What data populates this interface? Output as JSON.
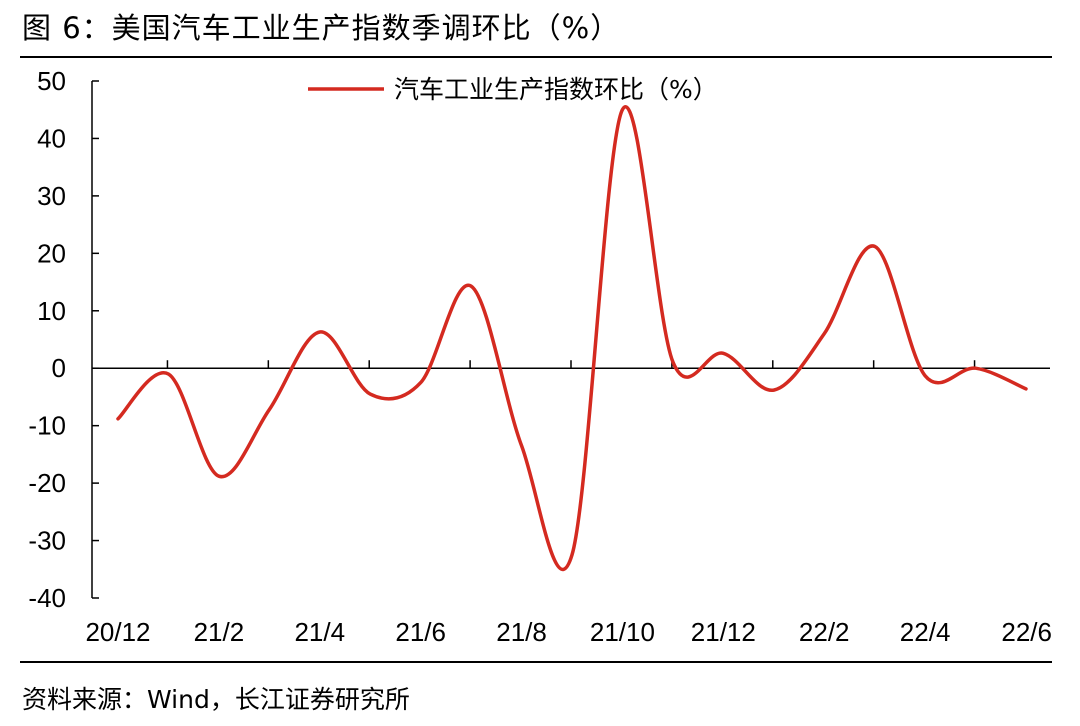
{
  "figure": {
    "title": "图 6：美国汽车工业生产指数季调环比（%）",
    "source": "资料来源：Wind，长江证券研究所"
  },
  "colors": {
    "series": "#d42a20",
    "axis": "#000000"
  },
  "chart_data": {
    "type": "line",
    "title": "",
    "xlabel": "",
    "ylabel": "",
    "ylim": [
      -40,
      50
    ],
    "yticks": [
      50,
      40,
      30,
      20,
      10,
      0,
      -10,
      -20,
      -30,
      -40
    ],
    "x_tick_labels": [
      "20/12",
      "21/2",
      "21/4",
      "21/6",
      "21/8",
      "21/10",
      "21/12",
      "22/2",
      "22/4",
      "22/6"
    ],
    "legend_position": "top-center",
    "grid": false,
    "series": [
      {
        "name": "汽车工业生产指数环比（%）",
        "x": [
          "20/12",
          "21/1",
          "21/2",
          "21/3",
          "21/4",
          "21/5",
          "21/6",
          "21/7",
          "21/8",
          "21/9",
          "21/10",
          "21/11",
          "21/12",
          "22/1",
          "22/2",
          "22/3",
          "22/4",
          "22/5",
          "22/6"
        ],
        "values": [
          -8.8,
          -1.0,
          -18.8,
          -7.2,
          6.3,
          -4.5,
          -2.5,
          14.3,
          -13.5,
          -32.5,
          45.0,
          1.1,
          2.6,
          -3.8,
          6.0,
          21.2,
          -1.3,
          0.0,
          -3.6
        ]
      }
    ]
  }
}
